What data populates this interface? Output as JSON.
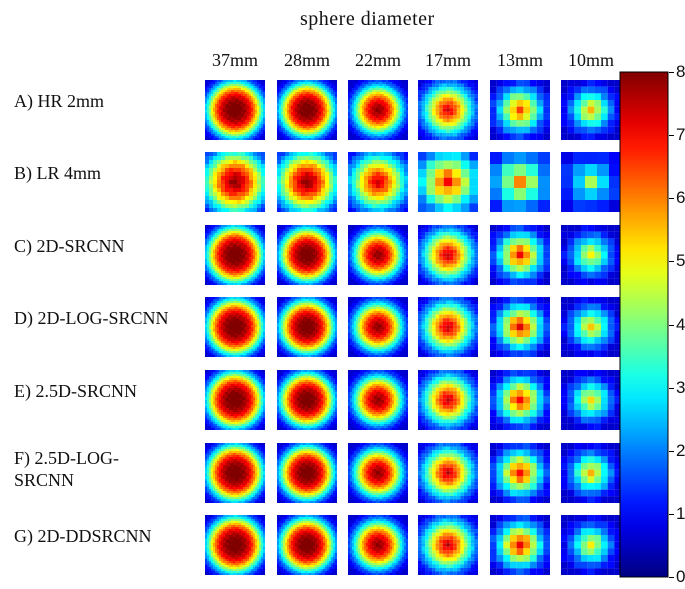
{
  "figure": {
    "title": "sphere diameter",
    "columns": [
      "37mm",
      "28mm",
      "22mm",
      "17mm",
      "13mm",
      "10mm"
    ],
    "rows": [
      {
        "label_lines": [
          "A) HR 2mm"
        ],
        "style": "hr"
      },
      {
        "label_lines": [
          "B) LR 4mm"
        ],
        "style": "lr"
      },
      {
        "label_lines": [
          "C) 2D-SRCNN"
        ],
        "style": "sr"
      },
      {
        "label_lines": [
          "D) 2D-LOG-SRCNN"
        ],
        "style": "sr"
      },
      {
        "label_lines": [
          "E) 2.5D-SRCNN"
        ],
        "style": "sr"
      },
      {
        "label_lines": [
          "F) 2.5D-LOG-",
          "SRCNN"
        ],
        "style": "sr"
      },
      {
        "label_lines": [
          "G) 2D-DDSRCNN"
        ],
        "style": "sr"
      }
    ],
    "colorbar": {
      "min": 0,
      "max": 8,
      "ticks": [
        "0",
        "1",
        "2",
        "3",
        "4",
        "5",
        "6",
        "7",
        "8"
      ],
      "colormap": "jet"
    },
    "tile_peak_values": [
      [
        7.8,
        7.8,
        7.6,
        7.6,
        7.0,
        6.2
      ],
      [
        7.8,
        7.9,
        7.7,
        7.9,
        6.8,
        4.8
      ],
      [
        7.8,
        7.8,
        7.6,
        7.8,
        7.6,
        5.6
      ],
      [
        7.8,
        7.8,
        7.6,
        7.8,
        7.8,
        6.0
      ],
      [
        7.8,
        7.8,
        7.6,
        7.8,
        7.6,
        5.8
      ],
      [
        7.8,
        7.8,
        7.6,
        7.8,
        7.6,
        6.2
      ],
      [
        7.8,
        7.8,
        7.6,
        7.8,
        7.8,
        5.6
      ]
    ]
  }
}
